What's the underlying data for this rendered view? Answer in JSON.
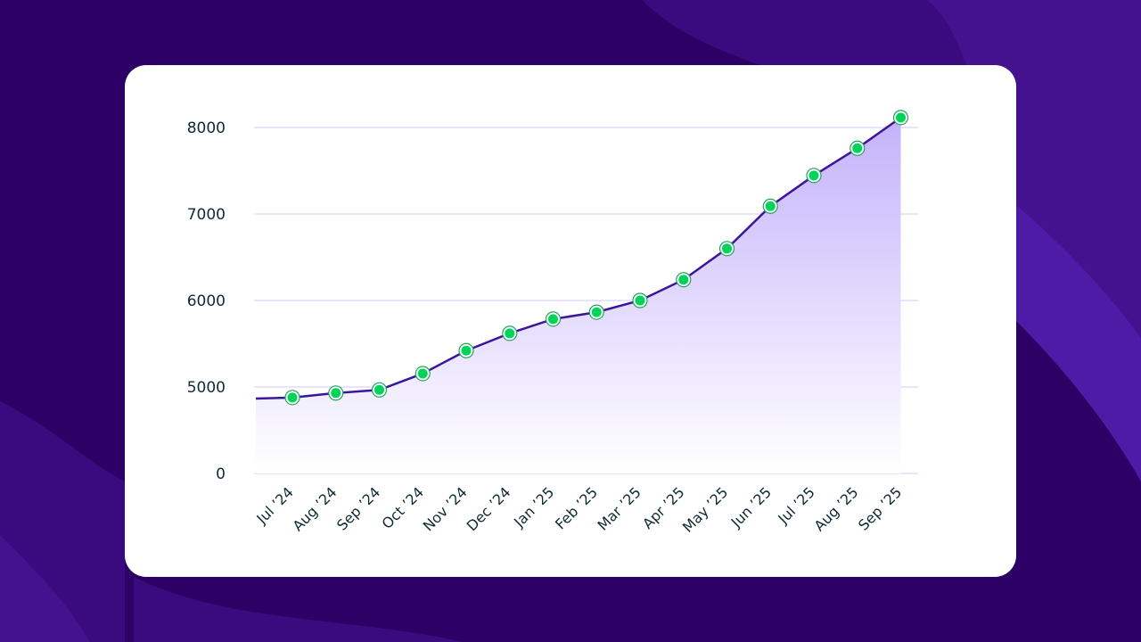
{
  "theme": {
    "background": "#2d0066",
    "wave_colors": [
      "#3a0b7e",
      "#44128f",
      "#4e1ba6"
    ],
    "card_background": "#ffffff",
    "line_color": "#3b169c",
    "area_top": "#c4b2fb",
    "area_bottom": "#ffffff",
    "marker_fill": "#00d35a",
    "marker_ring": "#1fa653",
    "grid_color": "#e3dcfa",
    "text_color": "#0f2a33"
  },
  "chart_data": {
    "type": "area",
    "title": "",
    "xlabel": "",
    "ylabel": "",
    "categories": [
      "Jul '24",
      "Aug '24",
      "Sep '24",
      "Oct '24",
      "Nov '24",
      "Dec '24",
      "Jan '25",
      "Feb '25",
      "Mar '25",
      "Apr '25",
      "May '25",
      "Jun '25",
      "Jul '25",
      "Aug '25",
      "Sep '25"
    ],
    "values": [
      4390,
      4650,
      4830,
      5155,
      5420,
      5620,
      5785,
      5865,
      6000,
      6240,
      6600,
      7090,
      7445,
      7760,
      8115
    ],
    "line_start_value": 4330,
    "y_ticks": [
      "0",
      "5000",
      "6000",
      "7000",
      "8000"
    ],
    "y_axis_break": "between 0 and 5000",
    "ylim": [
      0,
      8200
    ],
    "grid": true,
    "legend": null
  }
}
